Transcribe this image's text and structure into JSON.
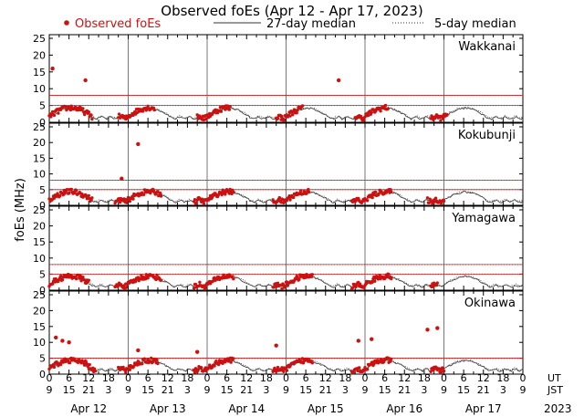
{
  "title": "Observed foEs (Apr 12 - Apr 17, 2023)",
  "legend": {
    "observed": "Observed foEs",
    "median27": "27-day median",
    "median5": "5-day median"
  },
  "ylabel": "foEs (MHz)",
  "x_hour_labels_ut": [
    "0",
    "6",
    "12",
    "18",
    "0",
    "6",
    "12",
    "18",
    "0",
    "6",
    "12",
    "18",
    "0",
    "6",
    "12",
    "18",
    "0",
    "6",
    "12",
    "18",
    "0",
    "6",
    "12",
    "18",
    "0"
  ],
  "x_hour_labels_jst": [
    "9",
    "15",
    "21",
    "3",
    "9",
    "15",
    "21",
    "3",
    "9",
    "15",
    "21",
    "3",
    "9",
    "15",
    "21",
    "3",
    "9",
    "15",
    "21",
    "3",
    "9",
    "15",
    "21",
    "3",
    "9"
  ],
  "ut_label": "UT",
  "jst_label": "JST",
  "days": [
    "Apr 12",
    "Apr 13",
    "Apr 14",
    "Apr 15",
    "Apr 16",
    "Apr 17"
  ],
  "year": "2023",
  "colors": {
    "observed": "#cc1111",
    "median27": "#333333",
    "median5": "#555555",
    "ref_line": "#cc2222",
    "day_line": "#777777"
  },
  "chart_data": {
    "type": "scatter",
    "x_unit": "hours from Apr 12 00 UT",
    "xlim": [
      0,
      144
    ],
    "ylim": [
      0,
      25
    ],
    "yticks": [
      0,
      5,
      10,
      15,
      20,
      25
    ],
    "panels": [
      {
        "station": "Wakkanai",
        "ref_lines": [
          5,
          8
        ],
        "outliers": [
          [
            1,
            16
          ],
          [
            11,
            12.5
          ],
          [
            88,
            12.5
          ]
        ],
        "observed_windows": [
          [
            0,
            13
          ],
          [
            21,
            32
          ],
          [
            45,
            55
          ],
          [
            69,
            77
          ],
          [
            93,
            103
          ],
          [
            116,
            121
          ]
        ]
      },
      {
        "station": "Kokubunji",
        "ref_lines": [
          5,
          8
        ],
        "outliers": [
          [
            22,
            8.5
          ],
          [
            27,
            19.5
          ]
        ],
        "observed_windows": [
          [
            0,
            13
          ],
          [
            20,
            34
          ],
          [
            44,
            56
          ],
          [
            68,
            79
          ],
          [
            92,
            104
          ],
          [
            115,
            120
          ]
        ]
      },
      {
        "station": "Yamagawa",
        "ref_lines": [
          5,
          8
        ],
        "outliers": [],
        "observed_windows": [
          [
            0,
            12
          ],
          [
            20,
            34
          ],
          [
            44,
            56
          ],
          [
            68,
            80
          ],
          [
            92,
            104
          ],
          [
            116,
            118
          ]
        ]
      },
      {
        "station": "Okinawa",
        "ref_lines": [
          5,
          5
        ],
        "outliers": [
          [
            2,
            11.5
          ],
          [
            4,
            10.5
          ],
          [
            6,
            10
          ],
          [
            11,
            4
          ],
          [
            27,
            7.5
          ],
          [
            45,
            7
          ],
          [
            69,
            9
          ],
          [
            94,
            10.5
          ],
          [
            98,
            11
          ],
          [
            115,
            14
          ],
          [
            118,
            14.5
          ]
        ],
        "observed_windows": [
          [
            0,
            14
          ],
          [
            21,
            33
          ],
          [
            44,
            56
          ],
          [
            68,
            80
          ],
          [
            92,
            104
          ],
          [
            116,
            120
          ]
        ]
      }
    ]
  }
}
